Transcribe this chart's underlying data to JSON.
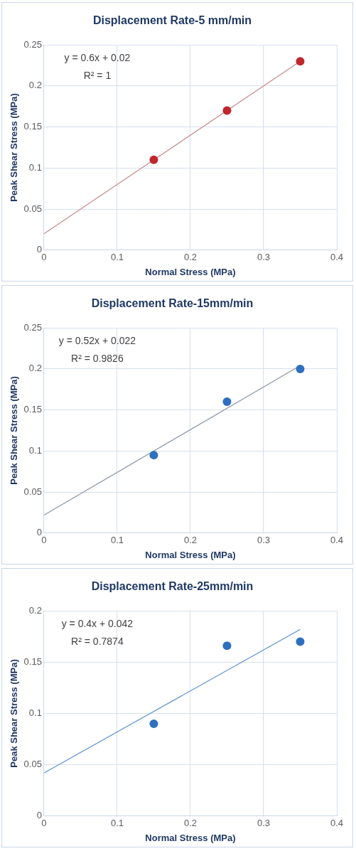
{
  "chart_data": [
    {
      "type": "scatter",
      "title": "Displacement Rate-5 mm/min",
      "xlabel": "Normal Stress (MPa)",
      "ylabel": "Peak Shear Stress (MPa)",
      "xlim": [
        0,
        0.4
      ],
      "xticks": [
        0,
        0.1,
        0.2,
        0.3,
        0.4
      ],
      "ylim": [
        0,
        0.25
      ],
      "yticks": [
        0,
        0.05,
        0.1,
        0.15,
        0.2,
        0.25
      ],
      "grid": true,
      "marker": "circle",
      "annotations": [
        "y = 0.6x + 0.02",
        "R² = 1"
      ],
      "series": [
        {
          "type": "scatter",
          "color": "#c0272d",
          "x": [
            0.15,
            0.25,
            0.35
          ],
          "values": [
            0.11,
            0.17,
            0.23
          ]
        },
        {
          "type": "line",
          "color": "#c48a8a",
          "marker": "none",
          "x": [
            0,
            0.35
          ],
          "values": [
            0.02,
            0.23
          ]
        }
      ]
    },
    {
      "type": "scatter",
      "title": "Displacement Rate-15mm/min",
      "xlabel": "Normal Stress (MPa)",
      "ylabel": "Peak Shear Stress (MPa)",
      "xlim": [
        0,
        0.4
      ],
      "xticks": [
        0,
        0.1,
        0.2,
        0.3,
        0.4
      ],
      "ylim": [
        0,
        0.25
      ],
      "yticks": [
        0,
        0.05,
        0.1,
        0.15,
        0.2,
        0.25
      ],
      "grid": true,
      "marker": "circle",
      "annotations": [
        "y = 0.52x + 0.022",
        "R² = 0.9826"
      ],
      "series": [
        {
          "type": "scatter",
          "color": "#2e6fc0",
          "x": [
            0.15,
            0.25,
            0.35
          ],
          "values": [
            0.095,
            0.16,
            0.2
          ]
        },
        {
          "type": "line",
          "color": "#8a96a8",
          "marker": "none",
          "x": [
            0,
            0.35
          ],
          "values": [
            0.022,
            0.204
          ]
        }
      ]
    },
    {
      "type": "scatter",
      "title": "Displacement Rate-25mm/min",
      "xlabel": "Normal Stress (MPa)",
      "ylabel": "Peak Shear Stress (MPa)",
      "xlim": [
        0,
        0.4
      ],
      "xticks": [
        0,
        0.1,
        0.2,
        0.3,
        0.4
      ],
      "ylim": [
        0,
        0.2
      ],
      "yticks": [
        0,
        0.05,
        0.1,
        0.15,
        0.2
      ],
      "grid": true,
      "marker": "circle",
      "annotations": [
        "y = 0.4x + 0.042",
        "R² = 0.7874"
      ],
      "series": [
        {
          "type": "scatter",
          "color": "#2e6fc0",
          "x": [
            0.15,
            0.25,
            0.35
          ],
          "values": [
            0.09,
            0.166,
            0.17
          ]
        },
        {
          "type": "line",
          "color": "#5b8fd0",
          "marker": "none",
          "x": [
            0,
            0.35
          ],
          "values": [
            0.042,
            0.182
          ]
        }
      ]
    }
  ]
}
